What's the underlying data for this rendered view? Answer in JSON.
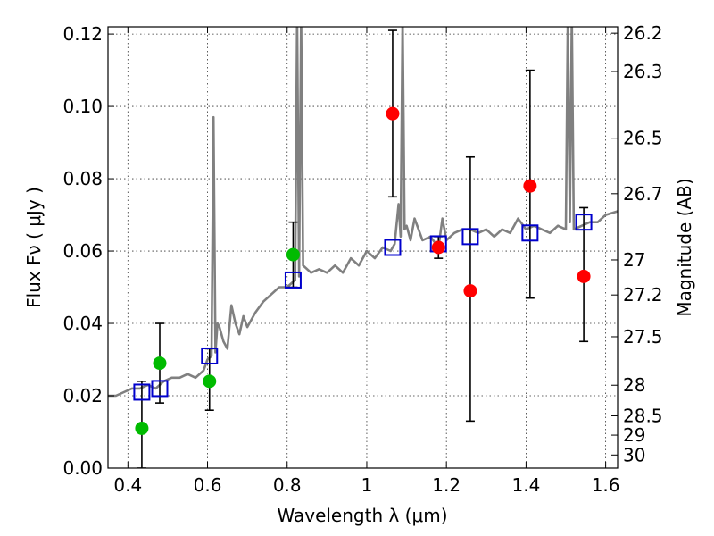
{
  "chart_data": {
    "type": "scatter",
    "title": "",
    "xlabel": "Wavelength  λ (μm)",
    "ylabel": "Flux  Fν  ( μJy )",
    "ylabel_right": "Magnitude (AB)",
    "xlim": [
      0.35,
      1.63
    ],
    "ylim": [
      0.0,
      0.122
    ],
    "grid": true,
    "x_ticks": [
      0.4,
      0.6,
      0.8,
      1.0,
      1.2,
      1.4,
      1.6
    ],
    "x_tick_labels": [
      "0.4",
      "0.6",
      "0.8",
      "1",
      "1.2",
      "1.4",
      "1.6"
    ],
    "y_ticks": [
      0.0,
      0.02,
      0.04,
      0.06,
      0.08,
      0.1,
      0.12
    ],
    "y_tick_labels": [
      "0.00",
      "0.02",
      "0.04",
      "0.06",
      "0.08",
      "0.10",
      "0.12"
    ],
    "right_ticks": [
      26.2,
      26.3,
      26.5,
      26.7,
      27,
      27.2,
      27.5,
      28,
      28.5,
      29,
      30
    ],
    "right_tick_labels": [
      "26.2",
      "26.3",
      "26.5",
      "26.7",
      "27",
      "27.2",
      "27.5",
      "28",
      "28.5",
      "29",
      "30"
    ],
    "series": [
      {
        "name": "model spectrum",
        "kind": "line",
        "color": "#808080",
        "x": [
          0.35,
          0.37,
          0.39,
          0.41,
          0.43,
          0.45,
          0.47,
          0.49,
          0.51,
          0.53,
          0.55,
          0.57,
          0.59,
          0.6,
          0.61,
          0.615,
          0.62,
          0.625,
          0.63,
          0.64,
          0.65,
          0.66,
          0.67,
          0.68,
          0.69,
          0.7,
          0.72,
          0.74,
          0.76,
          0.78,
          0.8,
          0.82,
          0.825,
          0.83,
          0.835,
          0.84,
          0.86,
          0.88,
          0.9,
          0.92,
          0.94,
          0.96,
          0.98,
          1.0,
          1.02,
          1.04,
          1.06,
          1.07,
          1.08,
          1.085,
          1.09,
          1.095,
          1.1,
          1.11,
          1.12,
          1.14,
          1.16,
          1.18,
          1.19,
          1.2,
          1.22,
          1.24,
          1.26,
          1.28,
          1.3,
          1.32,
          1.34,
          1.36,
          1.38,
          1.4,
          1.42,
          1.44,
          1.46,
          1.48,
          1.5,
          1.505,
          1.51,
          1.515,
          1.52,
          1.54,
          1.56,
          1.58,
          1.6,
          1.63
        ],
        "y": [
          0.02,
          0.02,
          0.021,
          0.022,
          0.022,
          0.023,
          0.022,
          0.024,
          0.025,
          0.025,
          0.026,
          0.025,
          0.027,
          0.03,
          0.031,
          0.097,
          0.032,
          0.04,
          0.039,
          0.035,
          0.033,
          0.045,
          0.04,
          0.037,
          0.042,
          0.039,
          0.043,
          0.046,
          0.048,
          0.05,
          0.05,
          0.052,
          0.125,
          0.053,
          0.125,
          0.056,
          0.054,
          0.055,
          0.054,
          0.056,
          0.054,
          0.058,
          0.056,
          0.06,
          0.058,
          0.061,
          0.06,
          0.062,
          0.073,
          0.064,
          0.125,
          0.066,
          0.067,
          0.063,
          0.069,
          0.063,
          0.064,
          0.061,
          0.069,
          0.063,
          0.065,
          0.066,
          0.066,
          0.065,
          0.066,
          0.064,
          0.066,
          0.065,
          0.069,
          0.066,
          0.067,
          0.066,
          0.065,
          0.067,
          0.066,
          0.125,
          0.068,
          0.125,
          0.066,
          0.067,
          0.068,
          0.068,
          0.07,
          0.071
        ]
      },
      {
        "name": "model photometry",
        "kind": "square",
        "color": "#0000cc",
        "x": [
          0.435,
          0.48,
          0.605,
          0.815,
          1.065,
          1.18,
          1.26,
          1.41,
          1.545
        ],
        "y": [
          0.021,
          0.022,
          0.031,
          0.052,
          0.061,
          0.062,
          0.064,
          0.065,
          0.068
        ]
      },
      {
        "name": "observed (green)",
        "kind": "circle",
        "color": "#00bb00",
        "x": [
          0.435,
          0.48,
          0.605,
          0.815
        ],
        "y": [
          0.011,
          0.029,
          0.024,
          0.059
        ]
      },
      {
        "name": "observed (red)",
        "kind": "circle",
        "color": "#ff0000",
        "x": [
          1.065,
          1.18,
          1.26,
          1.41,
          1.545
        ],
        "y": [
          0.098,
          0.061,
          0.049,
          0.078,
          0.053
        ]
      }
    ],
    "error_bars": [
      {
        "x": 0.435,
        "low": 0.0,
        "high": 0.024
      },
      {
        "x": 0.48,
        "low": 0.018,
        "high": 0.04
      },
      {
        "x": 0.605,
        "low": 0.016,
        "high": 0.033
      },
      {
        "x": 0.815,
        "low": 0.05,
        "high": 0.068
      },
      {
        "x": 1.065,
        "low": 0.075,
        "high": 0.121
      },
      {
        "x": 1.18,
        "low": 0.058,
        "high": 0.064
      },
      {
        "x": 1.26,
        "low": 0.013,
        "high": 0.086
      },
      {
        "x": 1.41,
        "low": 0.047,
        "high": 0.11
      },
      {
        "x": 1.545,
        "low": 0.035,
        "high": 0.072
      }
    ]
  }
}
